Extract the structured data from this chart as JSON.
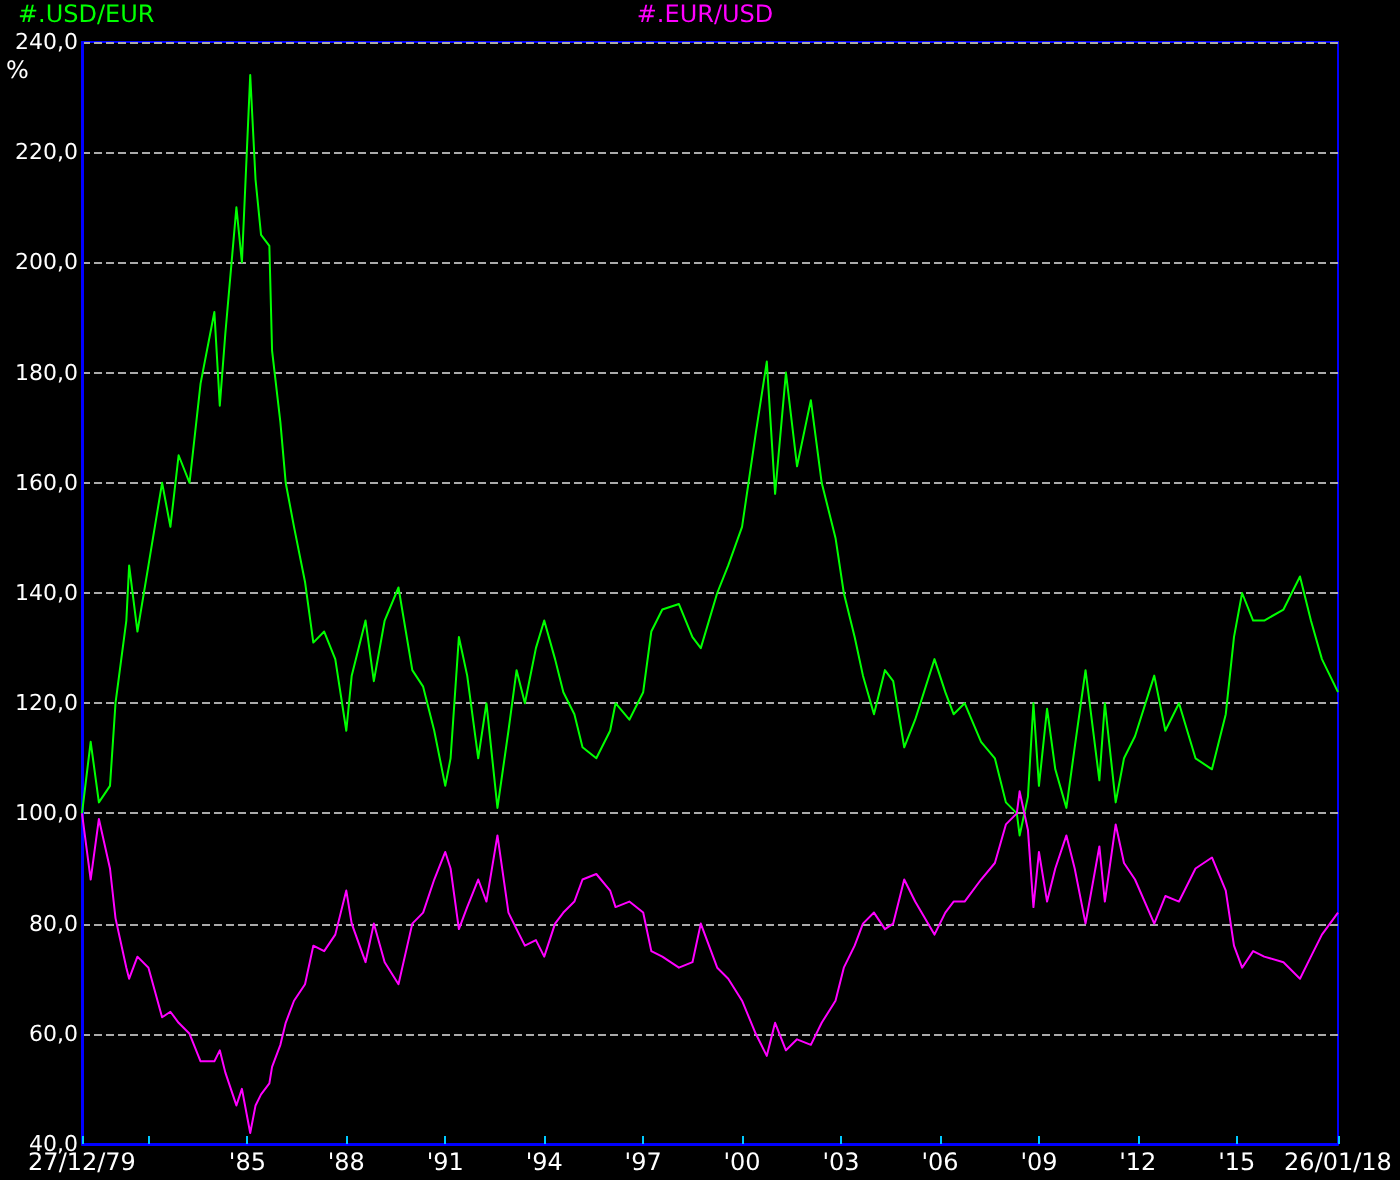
{
  "chart_data": {
    "type": "line",
    "ylabel": "%",
    "legend": "top",
    "grid": "y",
    "marker": "none",
    "line_style": "solid",
    "xlim": [
      "1979-12-27",
      "2018-01-26"
    ],
    "xticks": [
      {
        "value": "1979-12-27",
        "label": "27/12/79"
      },
      {
        "value": "1982-01-01",
        "label": null
      },
      {
        "value": "1985-01-01",
        "label": "'85"
      },
      {
        "value": "1988-01-01",
        "label": "'88"
      },
      {
        "value": "1991-01-01",
        "label": "'91"
      },
      {
        "value": "1994-01-01",
        "label": "'94"
      },
      {
        "value": "1997-01-01",
        "label": "'97"
      },
      {
        "value": "2000-01-01",
        "label": "'00"
      },
      {
        "value": "2003-01-01",
        "label": "'03"
      },
      {
        "value": "2006-01-01",
        "label": "'06"
      },
      {
        "value": "2009-01-01",
        "label": "'09"
      },
      {
        "value": "2012-01-01",
        "label": "'12"
      },
      {
        "value": "2015-01-01",
        "label": "'15"
      },
      {
        "value": "2018-01-26",
        "label": "26/01/18"
      }
    ],
    "ylim": [
      40,
      240
    ],
    "yticks": [
      {
        "value": 40,
        "label": "40,0"
      },
      {
        "value": 60,
        "label": "60,0"
      },
      {
        "value": 80,
        "label": "80,0"
      },
      {
        "value": 100,
        "label": "100,0"
      },
      {
        "value": 120,
        "label": "120,0"
      },
      {
        "value": 140,
        "label": "140,0"
      },
      {
        "value": 160,
        "label": "160,0"
      },
      {
        "value": 180,
        "label": "180,0"
      },
      {
        "value": 200,
        "label": "200,0"
      },
      {
        "value": 220,
        "label": "220,0"
      },
      {
        "value": 240,
        "label": "240,0"
      }
    ],
    "x": [
      "1979-12-27",
      "1980-04",
      "1980-07",
      "1980-11",
      "1981-01",
      "1981-05",
      "1981-06",
      "1981-09",
      "1982-01",
      "1982-06",
      "1982-09",
      "1982-12",
      "1983-04",
      "1983-08",
      "1984-01",
      "1984-03",
      "1984-05",
      "1984-09",
      "1984-11",
      "1985-02",
      "1985-04",
      "1985-06",
      "1985-09",
      "1985-10",
      "1986-01",
      "1986-03",
      "1986-06",
      "1986-10",
      "1987-01",
      "1987-05",
      "1987-09",
      "1988-01",
      "1988-03",
      "1988-08",
      "1988-11",
      "1989-03",
      "1989-08",
      "1990-01",
      "1990-05",
      "1990-09",
      "1991-01",
      "1991-03",
      "1991-06",
      "1991-09",
      "1992-01",
      "1992-04",
      "1992-08",
      "1992-12",
      "1993-03",
      "1993-06",
      "1993-10",
      "1994-01",
      "1994-05",
      "1994-08",
      "1994-12",
      "1995-03",
      "1995-08",
      "1996-01",
      "1996-03",
      "1996-08",
      "1997-01",
      "1997-04",
      "1997-08",
      "1998-02",
      "1998-07",
      "1998-10",
      "1999-04",
      "1999-08",
      "2000-01",
      "2000-06",
      "2000-10",
      "2001-01",
      "2001-05",
      "2001-09",
      "2002-02",
      "2002-06",
      "2002-11",
      "2003-02",
      "2003-06",
      "2003-09",
      "2004-01",
      "2004-05",
      "2004-08",
      "2004-12",
      "2005-04",
      "2005-11",
      "2006-03",
      "2006-06",
      "2006-10",
      "2007-04",
      "2007-09",
      "2008-01",
      "2008-05",
      "2008-06",
      "2008-09",
      "2008-11",
      "2009-01",
      "2009-04",
      "2009-07",
      "2009-11",
      "2010-02",
      "2010-06",
      "2010-11",
      "2011-01",
      "2011-05",
      "2011-08",
      "2011-12",
      "2012-07",
      "2012-11",
      "2013-04",
      "2013-10",
      "2014-04",
      "2014-09",
      "2014-12",
      "2015-03",
      "2015-07",
      "2015-11",
      "2016-06",
      "2016-12",
      "2017-04",
      "2017-08",
      "2018-01-26"
    ],
    "series": [
      {
        "name": "#.USD/EUR",
        "color": "#00ff00",
        "values": [
          100,
          113,
          102,
          105,
          120,
          135,
          145,
          133,
          145,
          160,
          152,
          165,
          160,
          178,
          191,
          174,
          187,
          210,
          200,
          234,
          215,
          205,
          203,
          184,
          171,
          160,
          152,
          142,
          131,
          133,
          128,
          115,
          125,
          135,
          124,
          135,
          141,
          126,
          123,
          115,
          105,
          110,
          132,
          125,
          110,
          120,
          101,
          115,
          126,
          120,
          130,
          135,
          128,
          122,
          118,
          112,
          110,
          115,
          120,
          117,
          122,
          133,
          137,
          138,
          132,
          130,
          140,
          145,
          152,
          169,
          182,
          158,
          180,
          163,
          175,
          160,
          150,
          140,
          132,
          125,
          118,
          126,
          124,
          112,
          117,
          128,
          122,
          118,
          120,
          113,
          110,
          102,
          100,
          96,
          103,
          120,
          105,
          119,
          108,
          101,
          112,
          126,
          106,
          120,
          102,
          110,
          114,
          125,
          115,
          120,
          110,
          108,
          118,
          132,
          140,
          135,
          135,
          137,
          143,
          135,
          128,
          122
        ]
      },
      {
        "name": "#.EUR/USD",
        "color": "#ff00ff",
        "values": [
          100,
          88,
          99,
          90,
          81,
          72,
          70,
          74,
          72,
          63,
          64,
          62,
          60,
          55,
          55,
          57,
          53,
          47,
          50,
          42,
          47,
          49,
          51,
          54,
          58,
          62,
          66,
          69,
          76,
          75,
          78,
          86,
          80,
          73,
          80,
          73,
          69,
          80,
          82,
          88,
          93,
          90,
          79,
          83,
          88,
          84,
          96,
          82,
          79,
          76,
          77,
          74,
          80,
          82,
          84,
          88,
          89,
          86,
          83,
          84,
          82,
          75,
          74,
          72,
          73,
          80,
          72,
          70,
          66,
          60,
          56,
          62,
          57,
          59,
          58,
          62,
          66,
          72,
          76,
          80,
          82,
          79,
          80,
          88,
          84,
          78,
          82,
          84,
          84,
          88,
          91,
          98,
          100,
          104,
          97,
          83,
          93,
          84,
          90,
          96,
          90,
          80,
          94,
          84,
          98,
          91,
          88,
          80,
          85,
          84,
          90,
          92,
          86,
          76,
          72,
          75,
          74,
          73,
          70,
          74,
          78,
          82
        ]
      }
    ]
  }
}
